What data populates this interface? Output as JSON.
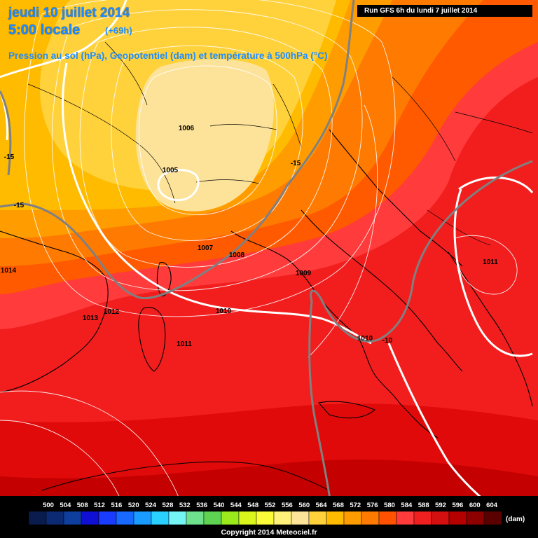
{
  "header": {
    "date_line": "jeudi 10 juillet 2014",
    "time_line": "5:00 locale",
    "lead_time": "(+69h)",
    "description": "Pression au sol (hPa), Geopotentiel (dam) et température à 500hPa (°C)",
    "run_info": "Run GFS 6h du lundi 7 juillet 2014"
  },
  "isobar_labels": [
    "1006",
    "1005",
    "1007",
    "1008",
    "1009",
    "1010",
    "1010",
    "1011",
    "1012",
    "1013",
    "1011",
    "1014"
  ],
  "isotherm_labels": [
    "-15",
    "-15",
    "-15",
    "-10"
  ],
  "legend": {
    "values": [
      "500",
      "504",
      "508",
      "512",
      "516",
      "520",
      "524",
      "528",
      "532",
      "536",
      "540",
      "544",
      "548",
      "552",
      "556",
      "560",
      "564",
      "568",
      "572",
      "576",
      "580",
      "584",
      "588",
      "592",
      "596",
      "600",
      "604"
    ],
    "colors": [
      "#0a1b4d",
      "#0c2a73",
      "#0f3f9e",
      "#1010d4",
      "#1a3cff",
      "#1769ff",
      "#1a9bff",
      "#2ad0ff",
      "#74f4f4",
      "#6fe18c",
      "#5fd352",
      "#9aea1c",
      "#d9f51c",
      "#fbfb3a",
      "#fff07a",
      "#fde39a",
      "#ffd23c",
      "#ffbb00",
      "#ff9d00",
      "#ff7a00",
      "#ff5200",
      "#ff3b3b",
      "#f02020",
      "#d40f0f",
      "#b50000",
      "#8e0000",
      "#5a0000"
    ],
    "unit": "(dam)"
  },
  "copyright": "Copyright 2014 Meteociel.fr",
  "colors": {
    "title": "#1e8cff",
    "isobar": "#ffffff",
    "isotherm": "#7f7f7f",
    "coast": "#000000"
  }
}
